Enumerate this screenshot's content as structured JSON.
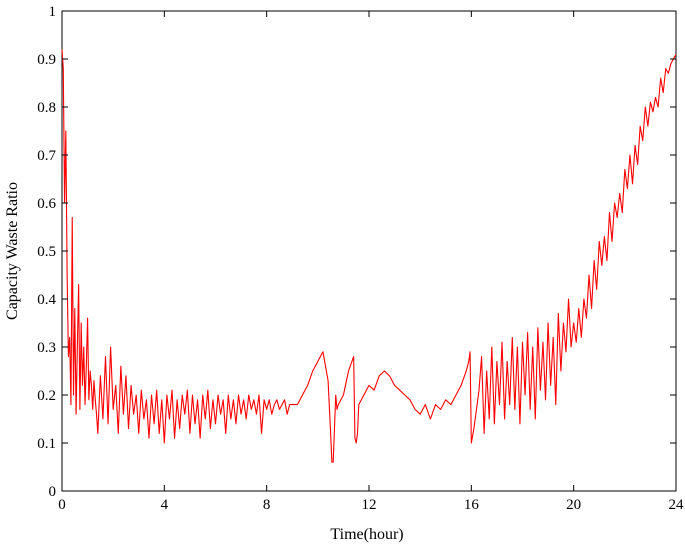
{
  "chart_data": {
    "type": "line",
    "title": "",
    "xlabel": "Time(hour)",
    "ylabel": "Capacity Waste Ratio",
    "xlim": [
      0,
      24
    ],
    "ylim": [
      0,
      1
    ],
    "x_ticks": [
      0,
      4,
      8,
      12,
      16,
      20,
      24
    ],
    "y_ticks": [
      0,
      0.1,
      0.2,
      0.3,
      0.4,
      0.5,
      0.6,
      0.7,
      0.8,
      0.9,
      1
    ],
    "grid": false,
    "legend": "none",
    "series": [
      {
        "color": "#ff0000",
        "x": [
          0.0,
          0.05,
          0.1,
          0.15,
          0.2,
          0.25,
          0.3,
          0.35,
          0.4,
          0.45,
          0.5,
          0.55,
          0.6,
          0.65,
          0.7,
          0.75,
          0.8,
          0.85,
          0.9,
          0.95,
          1.0,
          1.05,
          1.1,
          1.15,
          1.2,
          1.25,
          1.3,
          1.35,
          1.4,
          1.5,
          1.6,
          1.7,
          1.8,
          1.9,
          2.0,
          2.1,
          2.2,
          2.3,
          2.4,
          2.5,
          2.6,
          2.7,
          2.8,
          2.9,
          3.0,
          3.1,
          3.2,
          3.3,
          3.4,
          3.5,
          3.6,
          3.7,
          3.8,
          3.9,
          4.0,
          4.1,
          4.2,
          4.3,
          4.4,
          4.5,
          4.6,
          4.7,
          4.8,
          4.9,
          5.0,
          5.1,
          5.2,
          5.3,
          5.4,
          5.5,
          5.6,
          5.7,
          5.8,
          5.9,
          6.0,
          6.1,
          6.2,
          6.3,
          6.4,
          6.5,
          6.6,
          6.7,
          6.8,
          6.9,
          7.0,
          7.1,
          7.2,
          7.3,
          7.4,
          7.5,
          7.6,
          7.7,
          7.8,
          7.9,
          8.0,
          8.1,
          8.2,
          8.3,
          8.4,
          8.5,
          8.6,
          8.7,
          8.8,
          8.9,
          9.0,
          9.2,
          9.4,
          9.6,
          9.8,
          10.0,
          10.2,
          10.4,
          10.5,
          10.55,
          10.6,
          10.7,
          10.75,
          10.8,
          11.0,
          11.2,
          11.4,
          11.45,
          11.5,
          11.55,
          11.6,
          11.8,
          12.0,
          12.2,
          12.4,
          12.6,
          12.8,
          13.0,
          13.2,
          13.4,
          13.6,
          13.8,
          14.0,
          14.2,
          14.4,
          14.6,
          14.8,
          15.0,
          15.2,
          15.4,
          15.6,
          15.8,
          15.9,
          15.95,
          16.0,
          16.1,
          16.2,
          16.3,
          16.4,
          16.5,
          16.6,
          16.7,
          16.8,
          16.9,
          17.0,
          17.1,
          17.2,
          17.3,
          17.4,
          17.5,
          17.6,
          17.7,
          17.8,
          17.9,
          18.0,
          18.1,
          18.2,
          18.3,
          18.4,
          18.5,
          18.6,
          18.7,
          18.8,
          18.9,
          19.0,
          19.1,
          19.2,
          19.3,
          19.4,
          19.5,
          19.6,
          19.7,
          19.8,
          19.9,
          20.0,
          20.1,
          20.2,
          20.3,
          20.4,
          20.5,
          20.6,
          20.7,
          20.8,
          20.9,
          21.0,
          21.1,
          21.2,
          21.3,
          21.4,
          21.5,
          21.6,
          21.7,
          21.8,
          21.9,
          22.0,
          22.1,
          22.2,
          22.3,
          22.4,
          22.5,
          22.6,
          22.7,
          22.8,
          22.9,
          23.0,
          23.1,
          23.2,
          23.3,
          23.4,
          23.5,
          23.6,
          23.7,
          23.8,
          23.9,
          24.0
        ],
        "y": [
          0.92,
          0.88,
          0.6,
          0.75,
          0.45,
          0.28,
          0.32,
          0.18,
          0.57,
          0.2,
          0.38,
          0.16,
          0.3,
          0.43,
          0.17,
          0.35,
          0.22,
          0.3,
          0.18,
          0.26,
          0.36,
          0.19,
          0.25,
          0.22,
          0.17,
          0.23,
          0.19,
          0.16,
          0.12,
          0.24,
          0.15,
          0.28,
          0.14,
          0.3,
          0.17,
          0.22,
          0.12,
          0.26,
          0.16,
          0.24,
          0.13,
          0.22,
          0.16,
          0.2,
          0.12,
          0.21,
          0.15,
          0.19,
          0.11,
          0.2,
          0.14,
          0.21,
          0.12,
          0.19,
          0.1,
          0.2,
          0.15,
          0.21,
          0.11,
          0.19,
          0.13,
          0.2,
          0.16,
          0.21,
          0.12,
          0.2,
          0.14,
          0.19,
          0.11,
          0.2,
          0.15,
          0.21,
          0.13,
          0.19,
          0.14,
          0.2,
          0.16,
          0.19,
          0.12,
          0.2,
          0.15,
          0.19,
          0.14,
          0.2,
          0.16,
          0.19,
          0.15,
          0.2,
          0.17,
          0.19,
          0.16,
          0.2,
          0.12,
          0.19,
          0.17,
          0.19,
          0.16,
          0.18,
          0.19,
          0.17,
          0.18,
          0.19,
          0.16,
          0.18,
          0.18,
          0.18,
          0.2,
          0.22,
          0.25,
          0.27,
          0.29,
          0.23,
          0.12,
          0.06,
          0.06,
          0.2,
          0.17,
          0.18,
          0.2,
          0.25,
          0.28,
          0.11,
          0.1,
          0.12,
          0.18,
          0.2,
          0.22,
          0.21,
          0.24,
          0.25,
          0.24,
          0.22,
          0.21,
          0.2,
          0.19,
          0.17,
          0.16,
          0.18,
          0.15,
          0.18,
          0.17,
          0.19,
          0.18,
          0.2,
          0.22,
          0.25,
          0.27,
          0.29,
          0.1,
          0.13,
          0.17,
          0.21,
          0.28,
          0.12,
          0.25,
          0.15,
          0.3,
          0.14,
          0.27,
          0.18,
          0.31,
          0.15,
          0.27,
          0.18,
          0.32,
          0.17,
          0.3,
          0.14,
          0.31,
          0.2,
          0.33,
          0.17,
          0.3,
          0.15,
          0.34,
          0.21,
          0.31,
          0.19,
          0.35,
          0.22,
          0.32,
          0.18,
          0.37,
          0.25,
          0.35,
          0.29,
          0.4,
          0.3,
          0.35,
          0.31,
          0.38,
          0.32,
          0.4,
          0.36,
          0.45,
          0.38,
          0.48,
          0.42,
          0.52,
          0.47,
          0.53,
          0.48,
          0.58,
          0.52,
          0.6,
          0.57,
          0.62,
          0.58,
          0.67,
          0.63,
          0.7,
          0.64,
          0.72,
          0.68,
          0.76,
          0.73,
          0.8,
          0.76,
          0.81,
          0.79,
          0.82,
          0.8,
          0.86,
          0.83,
          0.88,
          0.87,
          0.89,
          0.9,
          0.91
        ]
      }
    ]
  }
}
